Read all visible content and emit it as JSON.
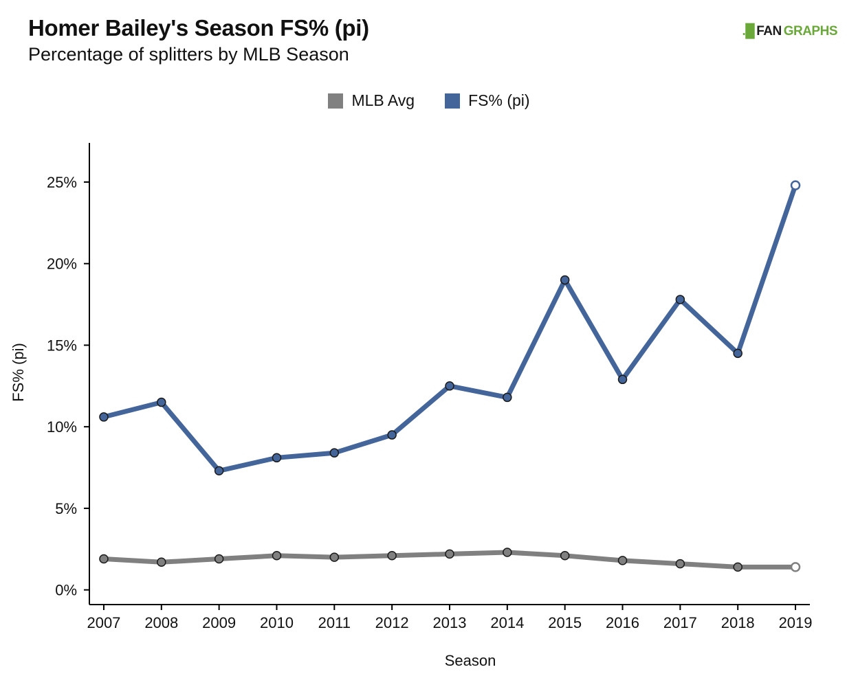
{
  "header": {
    "title": "Homer Bailey's Season FS% (pi)",
    "subtitle": "Percentage of splitters by MLB Season"
  },
  "brand": {
    "mark": ".█",
    "name_part1": "FAN",
    "name_part2": "GRAPHS",
    "icon": "fangraphs-logo-icon"
  },
  "chart_data": {
    "type": "line",
    "title": "Homer Bailey's Season FS% (pi)",
    "subtitle": "Percentage of splitters by MLB Season",
    "xlabel": "Season",
    "ylabel": "FS% (pi)",
    "x": [
      2007,
      2008,
      2009,
      2010,
      2011,
      2012,
      2013,
      2014,
      2015,
      2016,
      2017,
      2018,
      2019
    ],
    "y_ticks": [
      0,
      5,
      10,
      15,
      20,
      25
    ],
    "y_tick_labels": [
      "0%",
      "5%",
      "10%",
      "15%",
      "20%",
      "25%"
    ],
    "ylim": [
      -0.9,
      27.4
    ],
    "xlim": [
      2006.75,
      2019.25
    ],
    "grid": false,
    "legend_position": "top-center",
    "series": [
      {
        "name": "MLB Avg",
        "color": "#808080",
        "values": [
          1.9,
          1.7,
          1.9,
          2.1,
          2.0,
          2.1,
          2.2,
          2.3,
          2.1,
          1.8,
          1.6,
          1.4,
          1.4
        ]
      },
      {
        "name": "FS% (pi)",
        "color": "#44659a",
        "values": [
          10.6,
          11.5,
          7.3,
          8.1,
          8.4,
          9.5,
          12.5,
          11.8,
          19.0,
          12.9,
          17.8,
          14.5,
          24.8
        ]
      }
    ],
    "last_point_style": "hollow"
  }
}
